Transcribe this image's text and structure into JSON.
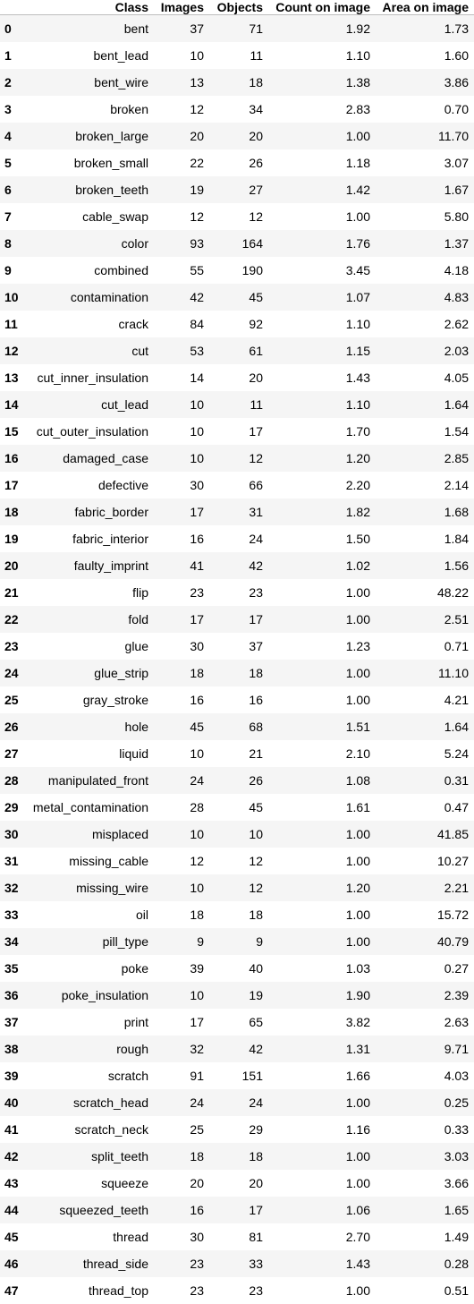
{
  "table": {
    "columns": [
      "",
      "Class",
      "Images",
      "Objects",
      "Count on image",
      "Area on image"
    ],
    "rows": [
      [
        "0",
        "bent",
        "37",
        "71",
        "1.92",
        "1.73"
      ],
      [
        "1",
        "bent_lead",
        "10",
        "11",
        "1.10",
        "1.60"
      ],
      [
        "2",
        "bent_wire",
        "13",
        "18",
        "1.38",
        "3.86"
      ],
      [
        "3",
        "broken",
        "12",
        "34",
        "2.83",
        "0.70"
      ],
      [
        "4",
        "broken_large",
        "20",
        "20",
        "1.00",
        "11.70"
      ],
      [
        "5",
        "broken_small",
        "22",
        "26",
        "1.18",
        "3.07"
      ],
      [
        "6",
        "broken_teeth",
        "19",
        "27",
        "1.42",
        "1.67"
      ],
      [
        "7",
        "cable_swap",
        "12",
        "12",
        "1.00",
        "5.80"
      ],
      [
        "8",
        "color",
        "93",
        "164",
        "1.76",
        "1.37"
      ],
      [
        "9",
        "combined",
        "55",
        "190",
        "3.45",
        "4.18"
      ],
      [
        "10",
        "contamination",
        "42",
        "45",
        "1.07",
        "4.83"
      ],
      [
        "11",
        "crack",
        "84",
        "92",
        "1.10",
        "2.62"
      ],
      [
        "12",
        "cut",
        "53",
        "61",
        "1.15",
        "2.03"
      ],
      [
        "13",
        "cut_inner_insulation",
        "14",
        "20",
        "1.43",
        "4.05"
      ],
      [
        "14",
        "cut_lead",
        "10",
        "11",
        "1.10",
        "1.64"
      ],
      [
        "15",
        "cut_outer_insulation",
        "10",
        "17",
        "1.70",
        "1.54"
      ],
      [
        "16",
        "damaged_case",
        "10",
        "12",
        "1.20",
        "2.85"
      ],
      [
        "17",
        "defective",
        "30",
        "66",
        "2.20",
        "2.14"
      ],
      [
        "18",
        "fabric_border",
        "17",
        "31",
        "1.82",
        "1.68"
      ],
      [
        "19",
        "fabric_interior",
        "16",
        "24",
        "1.50",
        "1.84"
      ],
      [
        "20",
        "faulty_imprint",
        "41",
        "42",
        "1.02",
        "1.56"
      ],
      [
        "21",
        "flip",
        "23",
        "23",
        "1.00",
        "48.22"
      ],
      [
        "22",
        "fold",
        "17",
        "17",
        "1.00",
        "2.51"
      ],
      [
        "23",
        "glue",
        "30",
        "37",
        "1.23",
        "0.71"
      ],
      [
        "24",
        "glue_strip",
        "18",
        "18",
        "1.00",
        "11.10"
      ],
      [
        "25",
        "gray_stroke",
        "16",
        "16",
        "1.00",
        "4.21"
      ],
      [
        "26",
        "hole",
        "45",
        "68",
        "1.51",
        "1.64"
      ],
      [
        "27",
        "liquid",
        "10",
        "21",
        "2.10",
        "5.24"
      ],
      [
        "28",
        "manipulated_front",
        "24",
        "26",
        "1.08",
        "0.31"
      ],
      [
        "29",
        "metal_contamination",
        "28",
        "45",
        "1.61",
        "0.47"
      ],
      [
        "30",
        "misplaced",
        "10",
        "10",
        "1.00",
        "41.85"
      ],
      [
        "31",
        "missing_cable",
        "12",
        "12",
        "1.00",
        "10.27"
      ],
      [
        "32",
        "missing_wire",
        "10",
        "12",
        "1.20",
        "2.21"
      ],
      [
        "33",
        "oil",
        "18",
        "18",
        "1.00",
        "15.72"
      ],
      [
        "34",
        "pill_type",
        "9",
        "9",
        "1.00",
        "40.79"
      ],
      [
        "35",
        "poke",
        "39",
        "40",
        "1.03",
        "0.27"
      ],
      [
        "36",
        "poke_insulation",
        "10",
        "19",
        "1.90",
        "2.39"
      ],
      [
        "37",
        "print",
        "17",
        "65",
        "3.82",
        "2.63"
      ],
      [
        "38",
        "rough",
        "32",
        "42",
        "1.31",
        "9.71"
      ],
      [
        "39",
        "scratch",
        "91",
        "151",
        "1.66",
        "4.03"
      ],
      [
        "40",
        "scratch_head",
        "24",
        "24",
        "1.00",
        "0.25"
      ],
      [
        "41",
        "scratch_neck",
        "25",
        "29",
        "1.16",
        "0.33"
      ],
      [
        "42",
        "split_teeth",
        "18",
        "18",
        "1.00",
        "3.03"
      ],
      [
        "43",
        "squeeze",
        "20",
        "20",
        "1.00",
        "3.66"
      ],
      [
        "44",
        "squeezed_teeth",
        "16",
        "17",
        "1.06",
        "1.65"
      ],
      [
        "45",
        "thread",
        "30",
        "81",
        "2.70",
        "1.49"
      ],
      [
        "46",
        "thread_side",
        "23",
        "33",
        "1.43",
        "0.28"
      ],
      [
        "47",
        "thread_top",
        "23",
        "23",
        "1.00",
        "0.51"
      ]
    ]
  }
}
